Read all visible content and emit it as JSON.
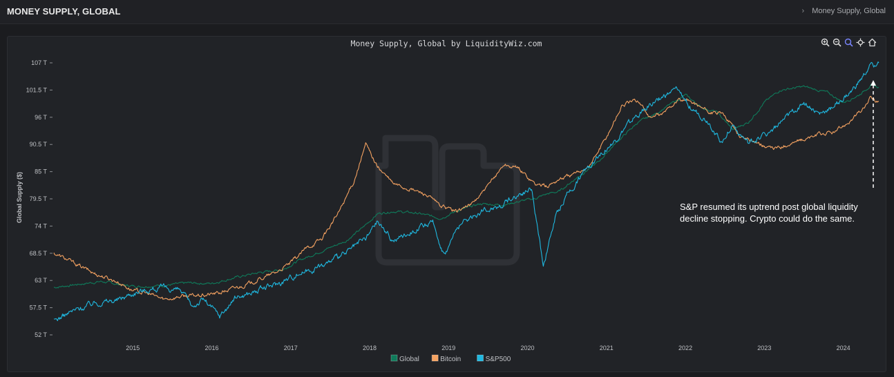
{
  "header": {
    "title": "MONEY SUPPLY, GLOBAL",
    "breadcrumb_chevron": "›",
    "breadcrumb_current": "Money Supply, Global"
  },
  "toolbar": {
    "icons": [
      "zoom-in-icon",
      "zoom-out-icon",
      "magnifier-icon",
      "pan-icon",
      "home-icon"
    ]
  },
  "chart_data": {
    "type": "line",
    "title": "Money Supply, Global by LiquidityWiz.com",
    "ylabel": "Global Supply ($)",
    "xlabel": "",
    "y_ticks": [
      "107 T",
      "101.5 T",
      "96 T",
      "90.5 T",
      "85 T",
      "79.5 T",
      "74 T",
      "68.5 T",
      "63 T",
      "57.5 T",
      "52 T"
    ],
    "y_tick_values": [
      107,
      101.5,
      96,
      90.5,
      85,
      79.5,
      74,
      68.5,
      63,
      57.5,
      52
    ],
    "x_ticks": [
      "2015",
      "2016",
      "2017",
      "2018",
      "2019",
      "2020",
      "2021",
      "2022",
      "2023",
      "2024"
    ],
    "ylim": [
      52,
      107
    ],
    "xlim": [
      2014.0,
      2024.45
    ],
    "grid": false,
    "legend_position": "bottom",
    "series": [
      {
        "name": "Global",
        "color": "#0f7a5a",
        "x": [
          2014.0,
          2014.3,
          2014.6,
          2014.9,
          2015.1,
          2015.4,
          2015.7,
          2016.0,
          2016.3,
          2016.6,
          2016.9,
          2017.1,
          2017.4,
          2017.7,
          2017.9,
          2018.1,
          2018.3,
          2018.6,
          2018.9,
          2019.1,
          2019.4,
          2019.7,
          2019.9,
          2020.1,
          2020.25,
          2020.4,
          2020.6,
          2020.9,
          2021.1,
          2021.4,
          2021.6,
          2021.8,
          2022.0,
          2022.2,
          2022.4,
          2022.6,
          2022.8,
          2023.0,
          2023.2,
          2023.5,
          2023.8,
          2024.0,
          2024.2,
          2024.35,
          2024.45
        ],
        "values": [
          61.6,
          62.2,
          62.8,
          62.0,
          61.8,
          62.0,
          62.5,
          62.4,
          63.6,
          64.6,
          65.2,
          67.0,
          69.0,
          71.0,
          73.5,
          76.5,
          77.0,
          76.6,
          75.6,
          77.0,
          78.5,
          78.3,
          79.0,
          79.6,
          80.5,
          81.0,
          83.5,
          87.0,
          90.5,
          95.0,
          96.5,
          98.5,
          100.5,
          98.0,
          97.0,
          93.5,
          95.0,
          99.0,
          101.5,
          102.2,
          101.0,
          99.0,
          100.5,
          102.5,
          102.0
        ]
      },
      {
        "name": "Bitcoin",
        "color": "#f4a261",
        "x": [
          2014.0,
          2014.2,
          2014.5,
          2014.8,
          2015.0,
          2015.2,
          2015.4,
          2015.6,
          2015.9,
          2016.1,
          2016.3,
          2016.5,
          2016.8,
          2017.0,
          2017.2,
          2017.4,
          2017.6,
          2017.8,
          2017.95,
          2018.1,
          2018.3,
          2018.5,
          2018.7,
          2018.9,
          2019.1,
          2019.3,
          2019.5,
          2019.7,
          2019.9,
          2020.1,
          2020.25,
          2020.4,
          2020.6,
          2020.8,
          2021.0,
          2021.2,
          2021.4,
          2021.55,
          2021.7,
          2021.9,
          2022.1,
          2022.3,
          2022.5,
          2022.7,
          2022.9,
          2023.1,
          2023.3,
          2023.5,
          2023.7,
          2023.9,
          2024.1,
          2024.25,
          2024.35,
          2024.45
        ],
        "values": [
          68.5,
          67.0,
          64.5,
          62.8,
          61.0,
          60.3,
          59.2,
          59.8,
          60.0,
          60.5,
          61.5,
          62.5,
          64.5,
          66.5,
          69.5,
          71.5,
          76.5,
          83.0,
          90.5,
          86.0,
          82.5,
          81.5,
          80.5,
          78.0,
          77.0,
          78.5,
          82.0,
          86.5,
          85.5,
          82.5,
          82.0,
          83.5,
          84.5,
          86.5,
          92.0,
          98.5,
          99.5,
          96.0,
          96.5,
          99.5,
          99.0,
          97.0,
          96.5,
          92.0,
          91.0,
          89.5,
          90.5,
          91.5,
          92.5,
          93.0,
          95.5,
          97.5,
          100.0,
          99.2
        ]
      },
      {
        "name": "S&P500",
        "color": "#1fb8e0",
        "x": [
          2014.0,
          2014.2,
          2014.5,
          2014.8,
          2015.0,
          2015.2,
          2015.4,
          2015.6,
          2015.75,
          2015.9,
          2016.1,
          2016.3,
          2016.6,
          2016.9,
          2017.1,
          2017.4,
          2017.7,
          2017.95,
          2018.1,
          2018.3,
          2018.6,
          2018.8,
          2018.95,
          2019.1,
          2019.3,
          2019.5,
          2019.7,
          2019.9,
          2020.05,
          2020.2,
          2020.35,
          2020.5,
          2020.7,
          2020.9,
          2021.1,
          2021.3,
          2021.5,
          2021.7,
          2021.9,
          2022.1,
          2022.3,
          2022.45,
          2022.6,
          2022.8,
          2022.95,
          2023.1,
          2023.3,
          2023.5,
          2023.7,
          2023.9,
          2024.1,
          2024.25,
          2024.35,
          2024.45
        ],
        "values": [
          54.8,
          56.5,
          58.5,
          59.0,
          60.5,
          61.2,
          61.5,
          61.0,
          57.8,
          59.2,
          55.8,
          59.5,
          61.0,
          62.8,
          64.5,
          66.0,
          68.5,
          71.5,
          75.0,
          71.0,
          73.5,
          74.5,
          68.0,
          73.5,
          76.0,
          77.5,
          78.5,
          80.5,
          81.5,
          66.0,
          75.5,
          80.5,
          84.5,
          88.5,
          91.0,
          95.0,
          98.0,
          100.0,
          101.5,
          97.5,
          95.0,
          91.0,
          94.5,
          90.5,
          92.0,
          93.5,
          96.0,
          99.0,
          96.5,
          98.5,
          101.0,
          104.0,
          106.5,
          107.0
        ]
      }
    ]
  },
  "annotation": {
    "text": "S&P resumed its uptrend post global liquidity decline stopping. Crypto could do the same."
  },
  "watermark": "LW"
}
